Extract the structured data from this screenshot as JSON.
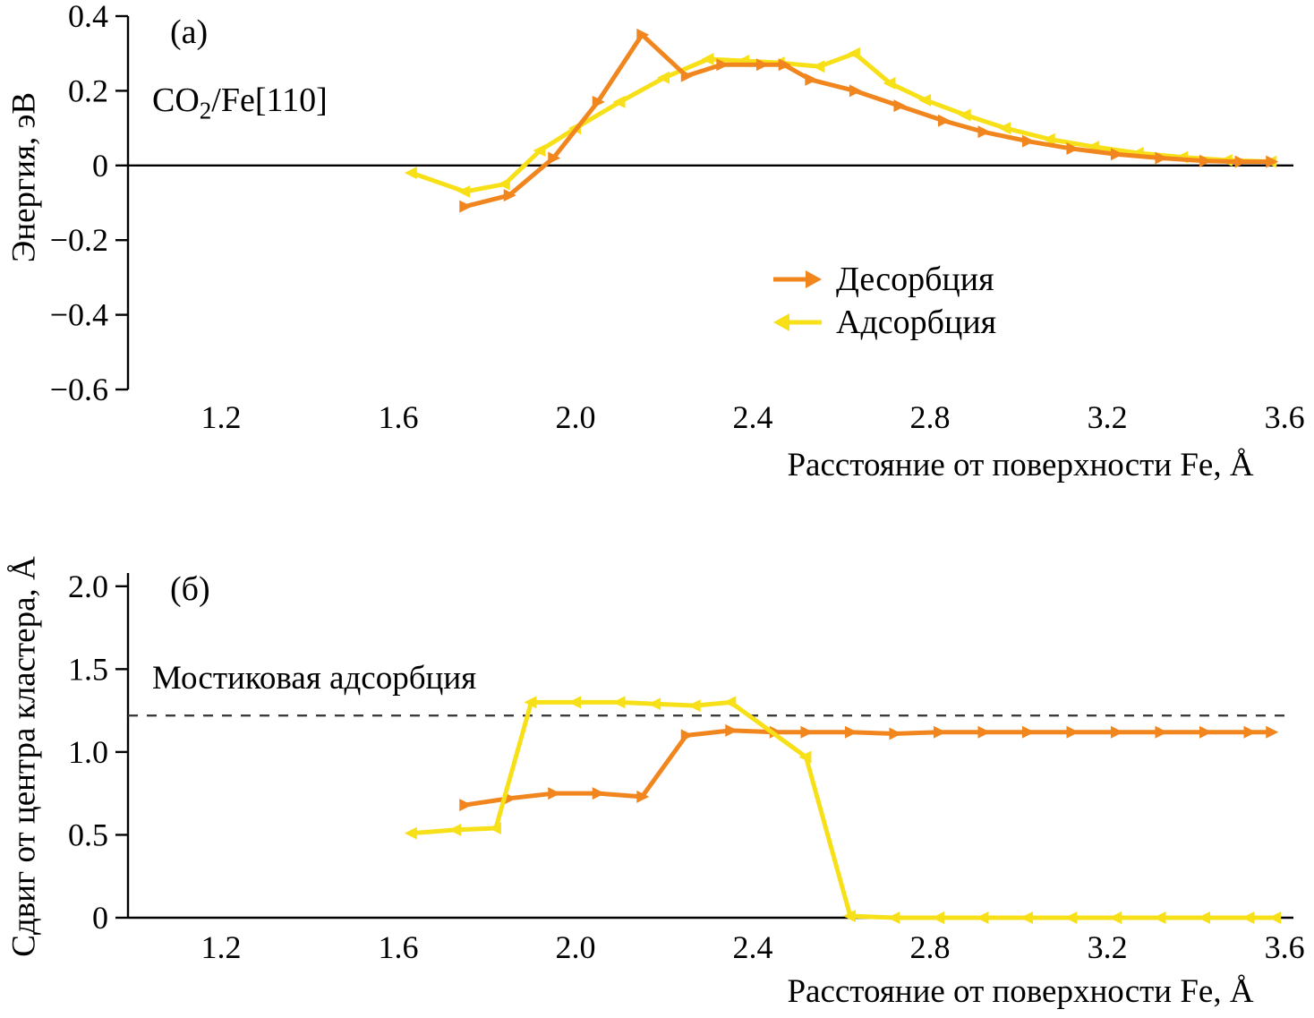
{
  "figure": {
    "panel_a_label": "(а)",
    "panel_b_label": "(б)",
    "title_a": {
      "prefix": "CO",
      "sub": "2",
      "suffix": "/Fe[110]"
    },
    "legend": {
      "desorption": "Десорбция",
      "adsorption": "Адсорбция"
    },
    "annotation_b": "Мостиковая адсорбция",
    "xlabel": "Расстояние от поверхности Fe, Å",
    "ylabel_a": "Энергия, эВ",
    "ylabel_b": "Сдвиг от центра кластера, Å"
  },
  "colors": {
    "desorption": "#F1861F",
    "adsorption": "#F7E017",
    "axis": "#000000",
    "dashed": "#3c3c3c"
  },
  "chart_data": [
    {
      "id": "a",
      "type": "line",
      "title": "CO₂/Fe[110]",
      "xlabel": "Расстояние от поверхности Fe, Å",
      "ylabel": "Энергия, эВ",
      "xlim": [
        0.99,
        3.62
      ],
      "ylim": [
        -0.6,
        0.4
      ],
      "xticks": [
        1.2,
        1.6,
        2.0,
        2.4,
        2.8,
        3.2,
        3.6
      ],
      "xtick_labels": [
        "1.2",
        "1.6",
        "2.0",
        "2.4",
        "2.8",
        "3.2",
        "3.6"
      ],
      "yticks": [
        0.4,
        0.2,
        0,
        -0.2,
        -0.4,
        -0.6
      ],
      "ytick_labels": [
        "0.4",
        "0.2",
        "0",
        "−0.2",
        "−0.4",
        "−0.6"
      ],
      "grid": false,
      "zero_line": true,
      "legend_position": "center-right",
      "series": [
        {
          "id": "desorption",
          "name": "Десорбция",
          "color": "#F1861F",
          "marker": "right",
          "points": [
            [
              1.75,
              -0.11
            ],
            [
              1.85,
              -0.08
            ],
            [
              1.95,
              0.02
            ],
            [
              2.05,
              0.17
            ],
            [
              2.15,
              0.35
            ],
            [
              2.25,
              0.24
            ],
            [
              2.33,
              0.27
            ],
            [
              2.42,
              0.27
            ],
            [
              2.47,
              0.27
            ],
            [
              2.53,
              0.23
            ],
            [
              2.63,
              0.2
            ],
            [
              2.73,
              0.16
            ],
            [
              2.83,
              0.12
            ],
            [
              2.92,
              0.09
            ],
            [
              3.02,
              0.065
            ],
            [
              3.12,
              0.045
            ],
            [
              3.22,
              0.03
            ],
            [
              3.32,
              0.02
            ],
            [
              3.42,
              0.012
            ],
            [
              3.5,
              0.01
            ],
            [
              3.57,
              0.01
            ]
          ]
        },
        {
          "id": "adsorption",
          "name": "Адсорбция",
          "color": "#F7E017",
          "marker": "left",
          "points": [
            [
              1.63,
              -0.02
            ],
            [
              1.75,
              -0.07
            ],
            [
              1.84,
              -0.05
            ],
            [
              1.92,
              0.04
            ],
            [
              2.0,
              0.1
            ],
            [
              2.1,
              0.17
            ],
            [
              2.2,
              0.235
            ],
            [
              2.3,
              0.285
            ],
            [
              2.38,
              0.28
            ],
            [
              2.46,
              0.275
            ],
            [
              2.55,
              0.265
            ],
            [
              2.63,
              0.3
            ],
            [
              2.71,
              0.22
            ],
            [
              2.79,
              0.175
            ],
            [
              2.88,
              0.135
            ],
            [
              2.97,
              0.1
            ],
            [
              3.07,
              0.07
            ],
            [
              3.17,
              0.05
            ],
            [
              3.27,
              0.033
            ],
            [
              3.37,
              0.022
            ],
            [
              3.47,
              0.014
            ],
            [
              3.57,
              0.01
            ]
          ]
        }
      ]
    },
    {
      "id": "b",
      "type": "line",
      "title": "",
      "xlabel": "Расстояние от поверхности Fe, Å",
      "ylabel": "Сдвиг от центра кластера, Å",
      "annotation": "Мостиковая адсорбция",
      "xlim": [
        0.99,
        3.62
      ],
      "ylim": [
        0,
        2.08
      ],
      "xticks": [
        1.2,
        1.6,
        2.0,
        2.4,
        2.8,
        3.2,
        3.6
      ],
      "xtick_labels": [
        "1.2",
        "1.6",
        "2.0",
        "2.4",
        "2.8",
        "3.2",
        "3.6"
      ],
      "yticks": [
        2.0,
        1.5,
        1.0,
        0.5,
        0
      ],
      "ytick_labels": [
        "2.0",
        "1.5",
        "1.0",
        "0.5",
        "0"
      ],
      "grid": false,
      "zero_line": false,
      "dashed_line_y": 1.22,
      "series": [
        {
          "id": "desorption",
          "name": "Десорбция",
          "color": "#F1861F",
          "marker": "right",
          "points": [
            [
              1.75,
              0.68
            ],
            [
              1.85,
              0.72
            ],
            [
              1.95,
              0.75
            ],
            [
              2.05,
              0.75
            ],
            [
              2.15,
              0.73
            ],
            [
              2.25,
              1.1
            ],
            [
              2.35,
              1.13
            ],
            [
              2.45,
              1.12
            ],
            [
              2.52,
              1.12
            ],
            [
              2.62,
              1.12
            ],
            [
              2.72,
              1.11
            ],
            [
              2.82,
              1.12
            ],
            [
              2.92,
              1.12
            ],
            [
              3.02,
              1.12
            ],
            [
              3.12,
              1.12
            ],
            [
              3.22,
              1.12
            ],
            [
              3.32,
              1.12
            ],
            [
              3.42,
              1.12
            ],
            [
              3.52,
              1.12
            ],
            [
              3.57,
              1.12
            ]
          ]
        },
        {
          "id": "adsorption",
          "name": "Адсорбция",
          "color": "#F7E017",
          "marker": "left",
          "points": [
            [
              1.63,
              0.51
            ],
            [
              1.73,
              0.53
            ],
            [
              1.82,
              0.54
            ],
            [
              1.9,
              1.3
            ],
            [
              2.0,
              1.3
            ],
            [
              2.1,
              1.3
            ],
            [
              2.18,
              1.29
            ],
            [
              2.27,
              1.28
            ],
            [
              2.35,
              1.3
            ],
            [
              2.52,
              0.97
            ],
            [
              2.62,
              0.01
            ],
            [
              2.72,
              0.0
            ],
            [
              2.82,
              0.0
            ],
            [
              2.92,
              0.0
            ],
            [
              3.02,
              0.0
            ],
            [
              3.12,
              0.0
            ],
            [
              3.22,
              0.0
            ],
            [
              3.32,
              0.0
            ],
            [
              3.42,
              0.0
            ],
            [
              3.52,
              0.0
            ],
            [
              3.58,
              0.0
            ]
          ]
        }
      ]
    }
  ]
}
